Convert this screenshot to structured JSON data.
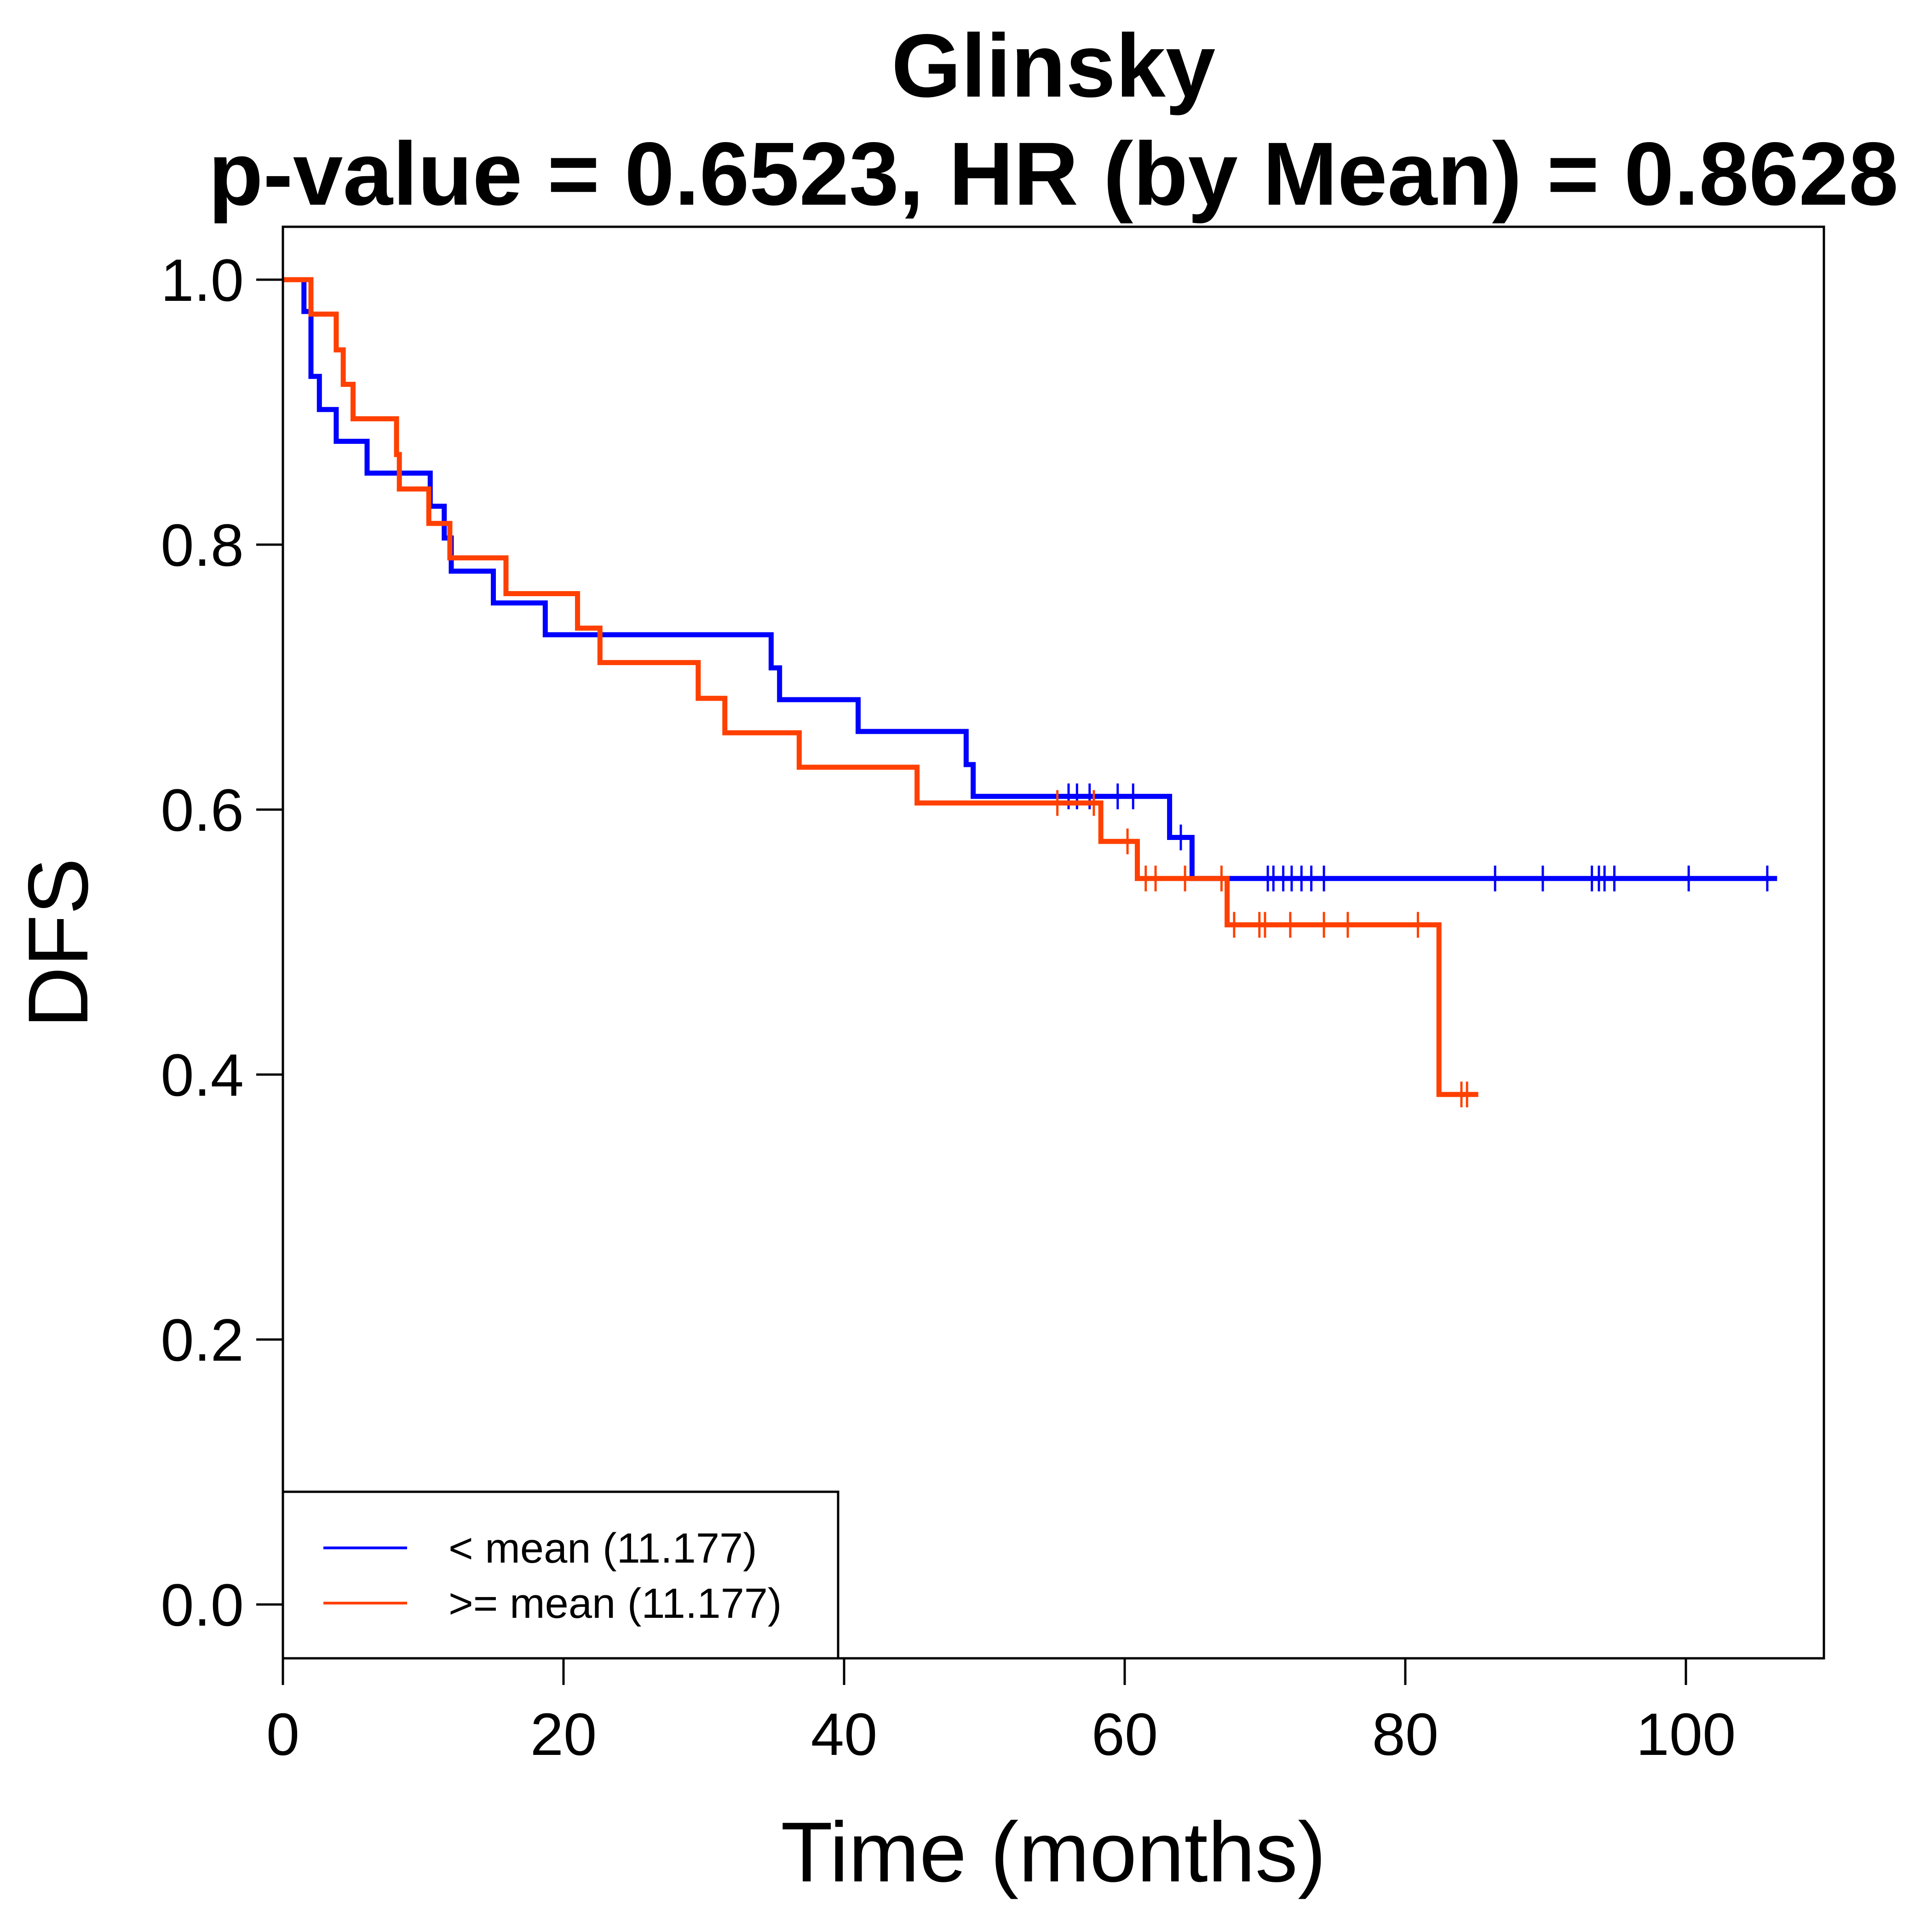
{
  "chart_data": {
    "type": "line",
    "subtype": "kaplan-meier",
    "title": "Glinsky",
    "subtitle": "p-value = 0.6523, HR (by Mean) = 0.8628",
    "xlabel": "Time (months)",
    "ylabel": "DFS",
    "xlim": [
      0,
      110
    ],
    "ylim": [
      0,
      1
    ],
    "x_ticks": [
      0,
      20,
      40,
      60,
      80,
      100
    ],
    "y_ticks": [
      0.0,
      0.2,
      0.4,
      0.6,
      0.8,
      1.0
    ],
    "x_tick_labels": [
      "0",
      "20",
      "40",
      "60",
      "80",
      "100"
    ],
    "y_tick_labels": [
      "0.0",
      "0.2",
      "0.4",
      "0.6",
      "0.8",
      "1.0"
    ],
    "grid": false,
    "legend_position": "bottom-left",
    "series": [
      {
        "name": "< mean (11.177)",
        "color": "#0000ff",
        "end_time": 106.5,
        "steps": [
          [
            0,
            1.0
          ],
          [
            1.5,
            0.976
          ],
          [
            2.0,
            0.927
          ],
          [
            2.6,
            0.902
          ],
          [
            3.8,
            0.878
          ],
          [
            6.0,
            0.854
          ],
          [
            10.5,
            0.829
          ],
          [
            11.5,
            0.805
          ],
          [
            12.0,
            0.78
          ],
          [
            15.0,
            0.756
          ],
          [
            18.7,
            0.732
          ],
          [
            34.8,
            0.707
          ],
          [
            35.4,
            0.683
          ],
          [
            41.0,
            0.659
          ],
          [
            48.7,
            0.634
          ],
          [
            49.2,
            0.61
          ],
          [
            63.2,
            0.579
          ],
          [
            64.8,
            0.548
          ]
        ],
        "censored": [
          [
            56.0,
            0.61
          ],
          [
            56.6,
            0.61
          ],
          [
            57.5,
            0.61
          ],
          [
            59.5,
            0.61
          ],
          [
            60.6,
            0.61
          ],
          [
            64.0,
            0.579
          ],
          [
            70.2,
            0.548
          ],
          [
            70.6,
            0.548
          ],
          [
            71.3,
            0.548
          ],
          [
            71.9,
            0.548
          ],
          [
            72.6,
            0.548
          ],
          [
            73.3,
            0.548
          ],
          [
            74.2,
            0.548
          ],
          [
            86.4,
            0.548
          ],
          [
            89.8,
            0.548
          ],
          [
            93.3,
            0.548
          ],
          [
            93.8,
            0.548
          ],
          [
            94.2,
            0.548
          ],
          [
            94.9,
            0.548
          ],
          [
            100.2,
            0.548
          ],
          [
            105.8,
            0.548
          ]
        ]
      },
      {
        "name": ">= mean (11.177)",
        "color": "#ff4000",
        "end_time": 85.2,
        "steps": [
          [
            0,
            1.0
          ],
          [
            2.0,
            0.974
          ],
          [
            3.8,
            0.947
          ],
          [
            4.3,
            0.921
          ],
          [
            5.0,
            0.895
          ],
          [
            8.1,
            0.868
          ],
          [
            8.3,
            0.842
          ],
          [
            10.4,
            0.816
          ],
          [
            11.9,
            0.79
          ],
          [
            15.9,
            0.763
          ],
          [
            21.0,
            0.737
          ],
          [
            22.6,
            0.711
          ],
          [
            29.6,
            0.684
          ],
          [
            31.5,
            0.658
          ],
          [
            36.8,
            0.632
          ],
          [
            45.2,
            0.605
          ],
          [
            58.3,
            0.576
          ],
          [
            60.9,
            0.548
          ],
          [
            67.3,
            0.513
          ],
          [
            82.4,
            0.385
          ]
        ],
        "censored": [
          [
            55.2,
            0.605
          ],
          [
            57.8,
            0.605
          ],
          [
            60.2,
            0.576
          ],
          [
            61.5,
            0.548
          ],
          [
            62.2,
            0.548
          ],
          [
            64.3,
            0.548
          ],
          [
            66.9,
            0.548
          ],
          [
            67.8,
            0.513
          ],
          [
            69.6,
            0.513
          ],
          [
            70.0,
            0.513
          ],
          [
            71.8,
            0.513
          ],
          [
            74.2,
            0.513
          ],
          [
            75.9,
            0.513
          ],
          [
            80.9,
            0.513
          ],
          [
            84.0,
            0.385
          ],
          [
            84.4,
            0.385
          ]
        ]
      }
    ]
  }
}
